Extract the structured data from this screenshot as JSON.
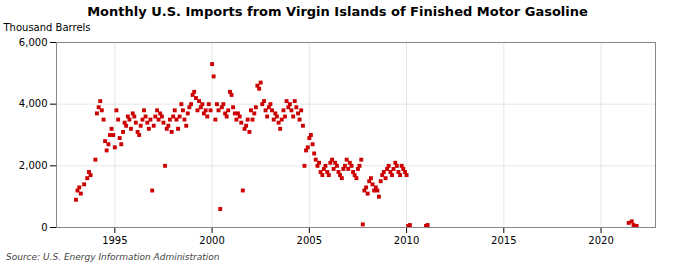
{
  "chart_data": {
    "type": "scatter",
    "title": "Monthly U.S. Imports from Virgin Islands of Finished Motor Gasoline",
    "ylabel": "Thousand Barrels",
    "source": "Source: U.S. Energy Information Administration",
    "color": "#cc0000",
    "marker": "square",
    "grid": true,
    "xlim": [
      1992.0,
      2022.8
    ],
    "xticks": [
      1995,
      2000,
      2005,
      2010,
      2015,
      2020
    ],
    "ylim": [
      0,
      6000
    ],
    "yticks": [
      0,
      {
        "value": 2000,
        "label": "2,000"
      },
      {
        "value": 4000,
        "label": "4,000"
      },
      {
        "value": 6000,
        "label": "6,000"
      }
    ],
    "x": [
      1993.0,
      1993.08,
      1993.17,
      1993.25,
      1993.42,
      1993.58,
      1993.67,
      1993.75,
      1994.0,
      1994.08,
      1994.17,
      1994.25,
      1994.33,
      1994.42,
      1994.5,
      1994.58,
      1994.67,
      1994.75,
      1994.83,
      1994.92,
      1995.0,
      1995.08,
      1995.17,
      1995.25,
      1995.33,
      1995.42,
      1995.5,
      1995.58,
      1995.67,
      1995.75,
      1995.83,
      1995.92,
      1996.0,
      1996.08,
      1996.17,
      1996.25,
      1996.33,
      1996.42,
      1996.5,
      1996.58,
      1996.67,
      1996.75,
      1996.83,
      1996.92,
      1997.0,
      1997.08,
      1997.17,
      1997.25,
      1997.33,
      1997.42,
      1997.5,
      1997.58,
      1997.67,
      1997.75,
      1997.83,
      1997.92,
      1998.0,
      1998.08,
      1998.17,
      1998.25,
      1998.33,
      1998.42,
      1998.5,
      1998.58,
      1998.67,
      1998.75,
      1998.83,
      1998.92,
      1999.0,
      1999.08,
      1999.17,
      1999.25,
      1999.33,
      1999.42,
      1999.5,
      1999.58,
      1999.67,
      1999.75,
      1999.83,
      1999.92,
      2000.0,
      2000.08,
      2000.17,
      2000.25,
      2000.33,
      2000.42,
      2000.5,
      2000.58,
      2000.67,
      2000.75,
      2000.83,
      2000.92,
      2001.0,
      2001.08,
      2001.17,
      2001.25,
      2001.33,
      2001.42,
      2001.5,
      2001.58,
      2001.67,
      2001.75,
      2001.83,
      2001.92,
      2002.0,
      2002.08,
      2002.17,
      2002.25,
      2002.33,
      2002.42,
      2002.5,
      2002.58,
      2002.67,
      2002.75,
      2002.83,
      2002.92,
      2003.0,
      2003.08,
      2003.17,
      2003.25,
      2003.33,
      2003.42,
      2003.5,
      2003.58,
      2003.67,
      2003.75,
      2003.83,
      2003.92,
      2004.0,
      2004.08,
      2004.17,
      2004.25,
      2004.33,
      2004.42,
      2004.5,
      2004.58,
      2004.67,
      2004.75,
      2004.83,
      2004.92,
      2005.0,
      2005.08,
      2005.17,
      2005.25,
      2005.33,
      2005.42,
      2005.5,
      2005.58,
      2005.67,
      2005.75,
      2005.83,
      2005.92,
      2006.0,
      2006.08,
      2006.17,
      2006.25,
      2006.33,
      2006.42,
      2006.5,
      2006.58,
      2006.67,
      2006.75,
      2006.83,
      2006.92,
      2007.0,
      2007.08,
      2007.17,
      2007.25,
      2007.33,
      2007.42,
      2007.5,
      2007.58,
      2007.67,
      2007.75,
      2007.83,
      2007.92,
      2008.0,
      2008.08,
      2008.17,
      2008.25,
      2008.33,
      2008.42,
      2008.5,
      2008.58,
      2008.67,
      2008.75,
      2008.83,
      2008.92,
      2009.0,
      2009.08,
      2009.17,
      2009.25,
      2009.33,
      2009.42,
      2009.5,
      2009.58,
      2009.67,
      2009.75,
      2009.83,
      2009.92,
      2010.0,
      2010.08,
      2010.17,
      2011.0,
      2011.08,
      2021.42,
      2021.58,
      2021.67,
      2021.83
    ],
    "values": [
      900,
      1200,
      1300,
      1100,
      1400,
      1600,
      1800,
      1700,
      2200,
      3700,
      3900,
      4100,
      3800,
      3500,
      2800,
      2500,
      2700,
      3000,
      3200,
      3000,
      2600,
      3800,
      3500,
      2900,
      2700,
      3100,
      3400,
      3300,
      3600,
      3500,
      3200,
      3700,
      3600,
      3400,
      3100,
      3000,
      3300,
      3500,
      3800,
      3600,
      3400,
      3200,
      3500,
      1200,
      3300,
      3600,
      3800,
      3500,
      3700,
      3600,
      3400,
      2000,
      3200,
      3300,
      3500,
      3100,
      3600,
      3800,
      3500,
      3200,
      3600,
      4000,
      3800,
      3500,
      3300,
      3700,
      3900,
      4000,
      4300,
      4400,
      4200,
      3800,
      4100,
      3900,
      4000,
      3700,
      3800,
      3600,
      4000,
      3800,
      5300,
      4900,
      3500,
      4000,
      3800,
      600,
      3900,
      4000,
      3700,
      3600,
      3800,
      4400,
      4300,
      3900,
      3700,
      3500,
      3700,
      3600,
      3400,
      1200,
      3200,
      3300,
      3500,
      3100,
      3800,
      3500,
      3700,
      3900,
      4600,
      4500,
      4700,
      4000,
      4100,
      3800,
      3600,
      3900,
      4000,
      3800,
      3500,
      3700,
      3600,
      3400,
      3200,
      3500,
      3800,
      3600,
      4100,
      3900,
      4000,
      3800,
      3600,
      4100,
      3900,
      3700,
      3500,
      3800,
      3300,
      2000,
      2500,
      2600,
      2900,
      3000,
      2700,
      2400,
      2200,
      2000,
      2100,
      1800,
      1700,
      1900,
      2000,
      1800,
      1700,
      2100,
      2200,
      1900,
      2100,
      2000,
      1800,
      1700,
      1600,
      1900,
      2000,
      2200,
      1900,
      2100,
      2000,
      1800,
      1700,
      1600,
      1900,
      2000,
      2200,
      100,
      1200,
      1300,
      1100,
      1500,
      1600,
      1400,
      1200,
      1300,
      1200,
      1000,
      1500,
      1700,
      1800,
      1600,
      1900,
      2000,
      1800,
      1700,
      1900,
      2100,
      2000,
      1800,
      1700,
      2000,
      1900,
      1800,
      1700,
      50,
      80,
      50,
      80,
      150,
      200,
      80,
      50
    ]
  }
}
